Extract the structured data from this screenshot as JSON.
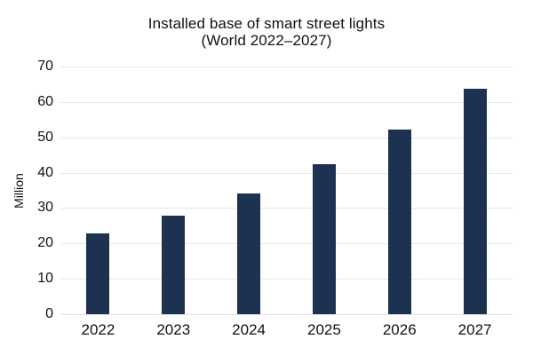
{
  "chart_data": {
    "type": "bar",
    "title": "Installed base of smart street lights",
    "subtitle": "(World 2022–2027)",
    "categories": [
      "2022",
      "2023",
      "2024",
      "2025",
      "2026",
      "2027"
    ],
    "values": [
      22.9,
      27.9,
      34.2,
      42.3,
      52.1,
      63.8
    ],
    "xlabel": "",
    "ylabel": "Million",
    "ylim": [
      0,
      70
    ],
    "yticks": [
      0,
      10,
      20,
      30,
      40,
      50,
      60,
      70
    ],
    "grid": true,
    "legend_position": "none",
    "colors": {
      "bar": "#1d3150",
      "gridline": "#e7e9ec",
      "text": "#111111",
      "background": "#ffffff"
    }
  }
}
